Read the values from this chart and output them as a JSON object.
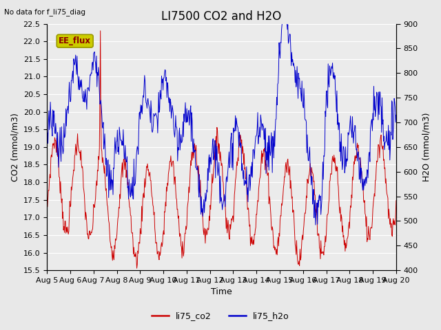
{
  "title": "LI7500 CO2 and H2O",
  "top_left_text": "No data for f_li75_diag",
  "annotation_text": "EE_flux",
  "xlabel": "Time",
  "ylabel_left": "CO2 (mmol/m3)",
  "ylabel_right": "H2O (mmol/m3)",
  "ylim_left": [
    15.5,
    22.5
  ],
  "ylim_right": [
    400,
    900
  ],
  "yticks_left": [
    15.5,
    16.0,
    16.5,
    17.0,
    17.5,
    18.0,
    18.5,
    19.0,
    19.5,
    20.0,
    20.5,
    21.0,
    21.5,
    22.0,
    22.5
  ],
  "yticks_right": [
    400,
    450,
    500,
    550,
    600,
    650,
    700,
    750,
    800,
    850,
    900
  ],
  "xtick_labels": [
    "Aug 5",
    "Aug 6",
    "Aug 7",
    "Aug 8",
    "Aug 9",
    "Aug 10",
    "Aug 11",
    "Aug 12",
    "Aug 13",
    "Aug 14",
    "Aug 15",
    "Aug 16",
    "Aug 17",
    "Aug 18",
    "Aug 19",
    "Aug 20"
  ],
  "legend_labels": [
    "li75_co2",
    "li75_h2o"
  ],
  "co2_color": "#cc0000",
  "h2o_color": "#0000cc",
  "bg_color": "#e8e8e8",
  "plot_bg_color": "#ebebeb",
  "annotation_bg": "#cccc00",
  "annotation_edge": "#999900",
  "grid_color": "#ffffff",
  "title_fontsize": 12,
  "label_fontsize": 9,
  "tick_fontsize": 8
}
